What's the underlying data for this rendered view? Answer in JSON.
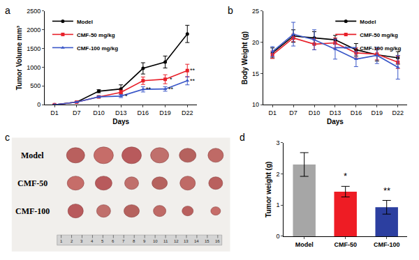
{
  "chart_data": [
    {
      "panel": "a",
      "type": "line",
      "x_label": "Days",
      "y_label": "Tumor Volume mm³",
      "categories": [
        "D1",
        "D7",
        "D10",
        "D13",
        "D16",
        "D19",
        "D22"
      ],
      "series": [
        {
          "name": "Model",
          "color": "#000000",
          "marker": "circle",
          "values": [
            0,
            70,
            360,
            420,
            970,
            1140,
            1890
          ],
          "errors": [
            0,
            10,
            40,
            110,
            150,
            160,
            230
          ]
        },
        {
          "name": "CMF-50 mg/kg",
          "color": "#e8202a",
          "marker": "square",
          "values": [
            0,
            70,
            210,
            330,
            640,
            680,
            910
          ],
          "errors": [
            0,
            10,
            20,
            60,
            100,
            120,
            170
          ]
        },
        {
          "name": "CMF-100 mg/kg",
          "color": "#3a57c8",
          "marker": "triangle-up",
          "values": [
            0,
            70,
            210,
            230,
            410,
            420,
            640
          ],
          "errors": [
            0,
            10,
            20,
            40,
            70,
            60,
            110
          ]
        }
      ],
      "ylim": [
        0,
        2500
      ],
      "yticks": [
        0,
        500,
        1000,
        1500,
        2000,
        2500
      ],
      "grid": false,
      "legend": "upper left",
      "annotations": [
        {
          "x": "D13",
          "y": 230,
          "text": "*"
        },
        {
          "x": "D16",
          "y": 410,
          "text": "**"
        },
        {
          "x": "D19",
          "y": 680,
          "text": "*"
        },
        {
          "x": "D19",
          "y": 420,
          "text": "**"
        },
        {
          "x": "D22",
          "y": 910,
          "text": "**"
        },
        {
          "x": "D22",
          "y": 640,
          "text": "**"
        }
      ]
    },
    {
      "panel": "b",
      "type": "line",
      "x_label": "Days",
      "y_label": "Body Weight (g)",
      "categories": [
        "D1",
        "D7",
        "D10",
        "D13",
        "D16",
        "D19",
        "D22"
      ],
      "series": [
        {
          "name": "Model",
          "color": "#000000",
          "marker": "circle",
          "values": [
            18.3,
            21.0,
            20.7,
            20.4,
            18.8,
            18.0,
            17.5
          ],
          "errors": [
            0.8,
            1.0,
            1.0,
            0.7,
            1.0,
            1.0,
            1.0
          ]
        },
        {
          "name": "CMF-50 mg/kg",
          "color": "#e8202a",
          "marker": "square",
          "values": [
            18.0,
            20.7,
            19.7,
            19.9,
            18.3,
            18.1,
            16.8
          ],
          "errors": [
            0.6,
            0.6,
            0.9,
            0.8,
            0.8,
            0.9,
            1.0
          ]
        },
        {
          "name": "CMF-100 mg/kg",
          "color": "#3a57c8",
          "marker": "triangle-up",
          "values": [
            18.5,
            21.3,
            20.4,
            18.9,
            17.3,
            17.9,
            16.0
          ],
          "errors": [
            0.8,
            1.9,
            1.6,
            1.6,
            1.2,
            1.3,
            1.9
          ]
        }
      ],
      "ylim": [
        10,
        25
      ],
      "yticks": [
        10,
        15,
        20,
        25
      ],
      "grid": false,
      "legend": "upper right"
    },
    {
      "panel": "d",
      "type": "bar",
      "y_label": "Tumor weight (g)",
      "categories": [
        "Model",
        "CMF-50",
        "CMF-100"
      ],
      "values": [
        2.3,
        1.43,
        0.93
      ],
      "errors": [
        0.38,
        0.17,
        0.22
      ],
      "colors": [
        "#a6a6a6",
        "#ee1c24",
        "#2c3fa0"
      ],
      "ylim": [
        0,
        3
      ],
      "yticks": [
        0,
        1,
        2,
        3
      ],
      "grid": false,
      "annotations": [
        {
          "x": "CMF-50",
          "y": 1.62,
          "text": "*"
        },
        {
          "x": "CMF-100",
          "y": 1.17,
          "text": "**"
        }
      ]
    }
  ],
  "photo": {
    "panel": "c",
    "rows": [
      "Model",
      "CMF-50",
      "CMF-100"
    ],
    "ruler_labels": [
      1,
      2,
      3,
      4,
      5,
      6,
      7,
      8,
      9,
      10,
      11,
      12,
      13,
      14,
      15,
      16
    ]
  }
}
